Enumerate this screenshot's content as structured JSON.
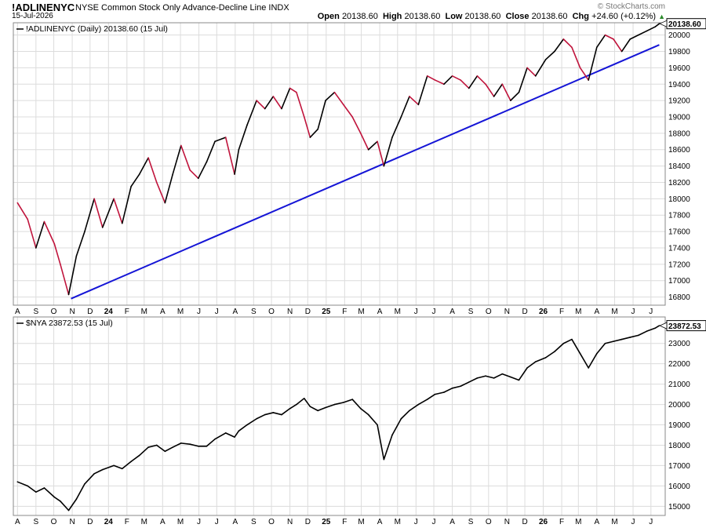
{
  "header": {
    "symbol": "!ADLINENYC",
    "description": "NYSE Common Stock Only Advance-Decline Line",
    "exchange": "INDX",
    "date": "15-Jul-2026",
    "open_label": "Open",
    "open": "20138.60",
    "high_label": "High",
    "high": "20138.60",
    "low_label": "Low",
    "low": "20138.60",
    "close_label": "Close",
    "close": "20138.60",
    "chg_label": "Chg",
    "chg": "+24.60 (+0.12%)",
    "brand": "© StockCharts.com"
  },
  "colors": {
    "up_line": "#000000",
    "down_line": "#c0143c",
    "trend_line": "#1515d6",
    "grid": "#dcdcdc",
    "panel_border": "#888888",
    "label_box": "#000000"
  },
  "chart_data": [
    {
      "type": "line",
      "legend": "!ADLINENYC (Daily) 20138.60 (15 Jul)",
      "last_value_label": "20138.60",
      "ylim": [
        16700,
        20150
      ],
      "yticks": [
        16800,
        17000,
        17200,
        17400,
        17600,
        17800,
        18000,
        18200,
        18400,
        18600,
        18800,
        19000,
        19200,
        19400,
        19600,
        19800,
        20000
      ],
      "x_month_labels": [
        "A",
        "S",
        "O",
        "N",
        "D",
        "24",
        "F",
        "M",
        "A",
        "M",
        "J",
        "J",
        "A",
        "S",
        "O",
        "N",
        "D",
        "25",
        "F",
        "M",
        "A",
        "M",
        "J",
        "J",
        "A",
        "S",
        "O",
        "N",
        "D",
        "26",
        "F",
        "M",
        "A",
        "M",
        "J",
        "J"
      ],
      "coloring": "black when rising, red when falling",
      "x": [
        "2023-08-01",
        "2023-08-18",
        "2023-09-01",
        "2023-09-15",
        "2023-10-02",
        "2023-10-12",
        "2023-10-26",
        "2023-11-08",
        "2023-11-22",
        "2023-12-08",
        "2023-12-22",
        "2024-01-10",
        "2024-01-24",
        "2024-02-08",
        "2024-02-22",
        "2024-03-08",
        "2024-03-22",
        "2024-04-05",
        "2024-04-18",
        "2024-05-02",
        "2024-05-17",
        "2024-05-31",
        "2024-06-14",
        "2024-06-28",
        "2024-07-16",
        "2024-07-31",
        "2024-08-07",
        "2024-08-21",
        "2024-09-06",
        "2024-09-20",
        "2024-10-04",
        "2024-10-18",
        "2024-11-01",
        "2024-11-12",
        "2024-11-25",
        "2024-12-05",
        "2024-12-18",
        "2024-12-31",
        "2025-01-15",
        "2025-01-30",
        "2025-02-14",
        "2025-02-28",
        "2025-03-13",
        "2025-03-28",
        "2025-04-08",
        "2025-04-22",
        "2025-05-07",
        "2025-05-21",
        "2025-06-05",
        "2025-06-20",
        "2025-07-03",
        "2025-07-18",
        "2025-08-01",
        "2025-08-15",
        "2025-08-29",
        "2025-09-12",
        "2025-09-26",
        "2025-10-10",
        "2025-10-24",
        "2025-11-07",
        "2025-11-21",
        "2025-12-05",
        "2025-12-19",
        "2026-01-05",
        "2026-01-20",
        "2026-02-04",
        "2026-02-18",
        "2026-03-04",
        "2026-03-18",
        "2026-04-01",
        "2026-04-15",
        "2026-04-29",
        "2026-05-13",
        "2026-05-27",
        "2026-06-10",
        "2026-06-24",
        "2026-07-08",
        "2026-07-15"
      ],
      "values": [
        17950,
        17750,
        17400,
        17720,
        17450,
        17200,
        16830,
        17300,
        17600,
        18000,
        17650,
        18000,
        17700,
        18150,
        18300,
        18500,
        18200,
        17950,
        18300,
        18650,
        18350,
        18250,
        18450,
        18700,
        18750,
        18300,
        18600,
        18900,
        19200,
        19100,
        19250,
        19100,
        19350,
        19300,
        19000,
        18750,
        18850,
        19200,
        19300,
        19150,
        19000,
        18800,
        18600,
        18700,
        18400,
        18750,
        19000,
        19250,
        19150,
        19500,
        19450,
        19400,
        19500,
        19450,
        19350,
        19500,
        19400,
        19250,
        19400,
        19200,
        19300,
        19600,
        19500,
        19700,
        19800,
        19950,
        19850,
        19600,
        19450,
        19850,
        20000,
        19950,
        19800,
        19950,
        20000,
        20050,
        20100,
        20138.6
      ]
    },
    {
      "type": "line",
      "series": "trendline",
      "x": [
        "2023-10-30",
        "2026-07-15"
      ],
      "values": [
        16780,
        19880
      ]
    },
    {
      "type": "line",
      "legend": "$NYA 23872.53 (15 Jul)",
      "last_value_label": "23872.53",
      "ylim": [
        14550,
        24300
      ],
      "yticks": [
        15000,
        16000,
        17000,
        18000,
        19000,
        20000,
        21000,
        22000,
        23000
      ],
      "x_month_labels": [
        "A",
        "S",
        "O",
        "N",
        "D",
        "24",
        "F",
        "M",
        "A",
        "M",
        "J",
        "J",
        "A",
        "S",
        "O",
        "N",
        "D",
        "25",
        "F",
        "M",
        "A",
        "M",
        "J",
        "J",
        "A",
        "S",
        "O",
        "N",
        "D",
        "26",
        "F",
        "M",
        "A",
        "M",
        "J",
        "J"
      ],
      "x": [
        "2023-08-01",
        "2023-08-18",
        "2023-09-01",
        "2023-09-15",
        "2023-10-02",
        "2023-10-12",
        "2023-10-26",
        "2023-11-08",
        "2023-11-22",
        "2023-12-08",
        "2023-12-22",
        "2024-01-10",
        "2024-01-24",
        "2024-02-08",
        "2024-02-22",
        "2024-03-08",
        "2024-03-22",
        "2024-04-05",
        "2024-04-18",
        "2024-05-02",
        "2024-05-17",
        "2024-05-31",
        "2024-06-14",
        "2024-06-28",
        "2024-07-16",
        "2024-07-31",
        "2024-08-07",
        "2024-08-21",
        "2024-09-06",
        "2024-09-20",
        "2024-10-04",
        "2024-10-18",
        "2024-11-01",
        "2024-11-12",
        "2024-11-25",
        "2024-12-05",
        "2024-12-18",
        "2024-12-31",
        "2025-01-15",
        "2025-01-30",
        "2025-02-14",
        "2025-02-28",
        "2025-03-13",
        "2025-03-28",
        "2025-04-08",
        "2025-04-22",
        "2025-05-07",
        "2025-05-21",
        "2025-06-05",
        "2025-06-20",
        "2025-07-03",
        "2025-07-18",
        "2025-08-01",
        "2025-08-15",
        "2025-08-29",
        "2025-09-12",
        "2025-09-26",
        "2025-10-10",
        "2025-10-24",
        "2025-11-07",
        "2025-11-21",
        "2025-12-05",
        "2025-12-19",
        "2026-01-05",
        "2026-01-20",
        "2026-02-04",
        "2026-02-18",
        "2026-03-04",
        "2026-03-18",
        "2026-04-01",
        "2026-04-15",
        "2026-04-29",
        "2026-05-13",
        "2026-05-27",
        "2026-06-10",
        "2026-06-24",
        "2026-07-08",
        "2026-07-15"
      ],
      "values": [
        16200,
        16000,
        15700,
        15900,
        15450,
        15250,
        14800,
        15350,
        16100,
        16600,
        16800,
        17000,
        16850,
        17200,
        17500,
        17900,
        18000,
        17700,
        17900,
        18100,
        18050,
        17950,
        17950,
        18300,
        18600,
        18400,
        18700,
        19000,
        19300,
        19500,
        19600,
        19500,
        19800,
        20000,
        20300,
        19900,
        19700,
        19850,
        20000,
        20100,
        20250,
        19800,
        19500,
        19000,
        17300,
        18500,
        19300,
        19700,
        20000,
        20250,
        20500,
        20600,
        20800,
        20900,
        21100,
        21300,
        21400,
        21300,
        21500,
        21350,
        21200,
        21800,
        22100,
        22300,
        22600,
        23000,
        23200,
        22500,
        21800,
        22500,
        23000,
        23100,
        23200,
        23300,
        23400,
        23600,
        23750,
        23872.53
      ]
    }
  ]
}
